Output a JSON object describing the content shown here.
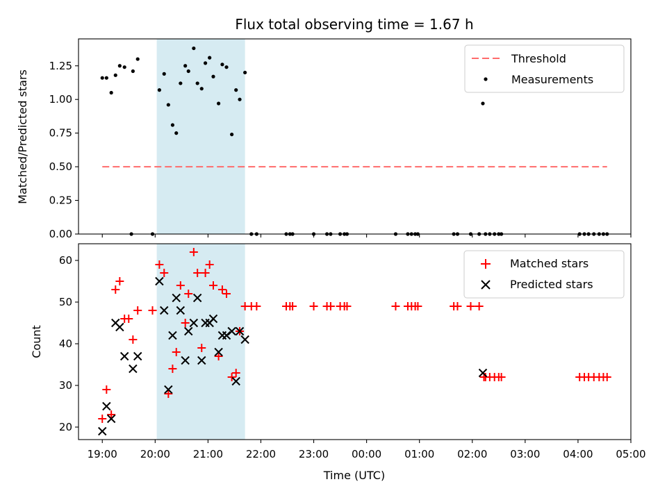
{
  "chart_data": [
    {
      "type": "scatter",
      "title": "Flux total observing time = 1.67 h",
      "xlabel": "",
      "ylabel": "Matched/Predicted stars",
      "xlim": [
        18.55,
        29.0
      ],
      "ylim": [
        0.0,
        1.45
      ],
      "yticks": [
        "0.00",
        "0.25",
        "0.50",
        "0.75",
        "1.00",
        "1.25"
      ],
      "shaded_span": [
        20.03,
        21.7
      ],
      "shade_color": "#add8e6",
      "threshold": {
        "name": "Threshold",
        "value": 0.5,
        "x_start": 19.0,
        "x_end": 28.55,
        "color": "#ff6b6b"
      },
      "series": [
        {
          "name": "Measurements",
          "color": "#000000",
          "points": [
            [
              19.0,
              1.16
            ],
            [
              19.08,
              1.16
            ],
            [
              19.17,
              1.05
            ],
            [
              19.25,
              1.18
            ],
            [
              19.33,
              1.25
            ],
            [
              19.42,
              1.24
            ],
            [
              19.55,
              0.0
            ],
            [
              19.58,
              1.21
            ],
            [
              19.67,
              1.3
            ],
            [
              19.95,
              0.0
            ],
            [
              20.08,
              1.07
            ],
            [
              20.17,
              1.19
            ],
            [
              20.25,
              0.96
            ],
            [
              20.33,
              0.81
            ],
            [
              20.4,
              0.75
            ],
            [
              20.48,
              1.12
            ],
            [
              20.57,
              1.25
            ],
            [
              20.63,
              1.21
            ],
            [
              20.73,
              1.38
            ],
            [
              20.8,
              1.12
            ],
            [
              20.88,
              1.08
            ],
            [
              20.95,
              1.27
            ],
            [
              21.03,
              1.31
            ],
            [
              21.1,
              1.17
            ],
            [
              21.2,
              0.97
            ],
            [
              21.27,
              1.26
            ],
            [
              21.35,
              1.24
            ],
            [
              21.45,
              0.74
            ],
            [
              21.53,
              1.07
            ],
            [
              21.6,
              1.0
            ],
            [
              21.7,
              1.2
            ],
            [
              21.82,
              0.0
            ],
            [
              21.92,
              0.0
            ],
            [
              22.48,
              0.0
            ],
            [
              22.55,
              0.0
            ],
            [
              22.6,
              0.0
            ],
            [
              23.0,
              0.0
            ],
            [
              23.25,
              0.0
            ],
            [
              23.32,
              0.0
            ],
            [
              23.5,
              0.0
            ],
            [
              23.58,
              0.0
            ],
            [
              23.63,
              0.0
            ],
            [
              24.55,
              0.0
            ],
            [
              24.78,
              0.0
            ],
            [
              24.85,
              0.0
            ],
            [
              24.92,
              0.0
            ],
            [
              24.97,
              0.0
            ],
            [
              25.65,
              0.0
            ],
            [
              25.72,
              0.0
            ],
            [
              25.97,
              0.0
            ],
            [
              26.13,
              0.0
            ],
            [
              26.2,
              0.97
            ],
            [
              26.25,
              0.0
            ],
            [
              26.33,
              0.0
            ],
            [
              26.42,
              0.0
            ],
            [
              26.5,
              0.0
            ],
            [
              26.55,
              0.0
            ],
            [
              28.03,
              0.0
            ],
            [
              28.12,
              0.0
            ],
            [
              28.2,
              0.0
            ],
            [
              28.3,
              0.0
            ],
            [
              28.4,
              0.0
            ],
            [
              28.48,
              0.0
            ],
            [
              28.55,
              0.0
            ]
          ]
        }
      ],
      "legend": {
        "placement": "top-right",
        "entries": [
          "Threshold",
          "Measurements"
        ]
      }
    },
    {
      "type": "scatter",
      "title": "",
      "xlabel": "Time (UTC)",
      "ylabel": "Count",
      "xlim": [
        18.55,
        29.0
      ],
      "ylim": [
        17,
        64
      ],
      "yticks": [
        "20",
        "30",
        "40",
        "50",
        "60"
      ],
      "xtick_values": [
        19,
        20,
        21,
        22,
        23,
        24,
        25,
        26,
        27,
        28,
        29
      ],
      "xtick_labels": [
        "19:00",
        "20:00",
        "21:00",
        "22:00",
        "23:00",
        "00:00",
        "01:00",
        "02:00",
        "03:00",
        "04:00",
        "05:00"
      ],
      "shaded_span": [
        20.03,
        21.7
      ],
      "shade_color": "#add8e6",
      "series": [
        {
          "name": "Matched stars",
          "marker": "plus",
          "color": "#ff0000",
          "points": [
            [
              19.0,
              22
            ],
            [
              19.08,
              29
            ],
            [
              19.17,
              23
            ],
            [
              19.25,
              53
            ],
            [
              19.33,
              55
            ],
            [
              19.42,
              46
            ],
            [
              19.5,
              46
            ],
            [
              19.58,
              41
            ],
            [
              19.67,
              48
            ],
            [
              19.95,
              48
            ],
            [
              20.08,
              59
            ],
            [
              20.17,
              57
            ],
            [
              20.25,
              28
            ],
            [
              20.33,
              34
            ],
            [
              20.4,
              38
            ],
            [
              20.48,
              54
            ],
            [
              20.57,
              45
            ],
            [
              20.63,
              52
            ],
            [
              20.73,
              62
            ],
            [
              20.8,
              57
            ],
            [
              20.88,
              39
            ],
            [
              20.95,
              57
            ],
            [
              21.03,
              59
            ],
            [
              21.1,
              54
            ],
            [
              21.2,
              37
            ],
            [
              21.27,
              53
            ],
            [
              21.35,
              52
            ],
            [
              21.45,
              32
            ],
            [
              21.53,
              33
            ],
            [
              21.6,
              43
            ],
            [
              21.7,
              49
            ],
            [
              21.82,
              49
            ],
            [
              21.92,
              49
            ],
            [
              22.48,
              49
            ],
            [
              22.55,
              49
            ],
            [
              22.6,
              49
            ],
            [
              23.0,
              49
            ],
            [
              23.25,
              49
            ],
            [
              23.32,
              49
            ],
            [
              23.5,
              49
            ],
            [
              23.58,
              49
            ],
            [
              23.63,
              49
            ],
            [
              24.55,
              49
            ],
            [
              24.78,
              49
            ],
            [
              24.85,
              49
            ],
            [
              24.92,
              49
            ],
            [
              24.97,
              49
            ],
            [
              25.65,
              49
            ],
            [
              25.72,
              49
            ],
            [
              25.97,
              49
            ],
            [
              26.13,
              49
            ],
            [
              26.22,
              32
            ],
            [
              26.25,
              32
            ],
            [
              26.33,
              32
            ],
            [
              26.42,
              32
            ],
            [
              26.5,
              32
            ],
            [
              26.55,
              32
            ],
            [
              28.03,
              32
            ],
            [
              28.12,
              32
            ],
            [
              28.2,
              32
            ],
            [
              28.3,
              32
            ],
            [
              28.4,
              32
            ],
            [
              28.48,
              32
            ],
            [
              28.55,
              32
            ]
          ]
        },
        {
          "name": "Predicted stars",
          "marker": "x",
          "color": "#000000",
          "points": [
            [
              19.0,
              19
            ],
            [
              19.08,
              25
            ],
            [
              19.17,
              22
            ],
            [
              19.25,
              45
            ],
            [
              19.33,
              44
            ],
            [
              19.42,
              37
            ],
            [
              19.58,
              34
            ],
            [
              19.67,
              37
            ],
            [
              20.08,
              55
            ],
            [
              20.17,
              48
            ],
            [
              20.25,
              29
            ],
            [
              20.33,
              42
            ],
            [
              20.4,
              51
            ],
            [
              20.48,
              48
            ],
            [
              20.57,
              36
            ],
            [
              20.63,
              43
            ],
            [
              20.73,
              45
            ],
            [
              20.8,
              51
            ],
            [
              20.88,
              36
            ],
            [
              20.95,
              45
            ],
            [
              21.03,
              45
            ],
            [
              21.1,
              46
            ],
            [
              21.2,
              38
            ],
            [
              21.27,
              42
            ],
            [
              21.35,
              42
            ],
            [
              21.45,
              43
            ],
            [
              21.53,
              31
            ],
            [
              21.6,
              43
            ],
            [
              21.7,
              41
            ],
            [
              26.2,
              33
            ]
          ]
        }
      ],
      "legend": {
        "placement": "top-right",
        "entries": [
          "Matched stars",
          "Predicted stars"
        ]
      }
    }
  ]
}
